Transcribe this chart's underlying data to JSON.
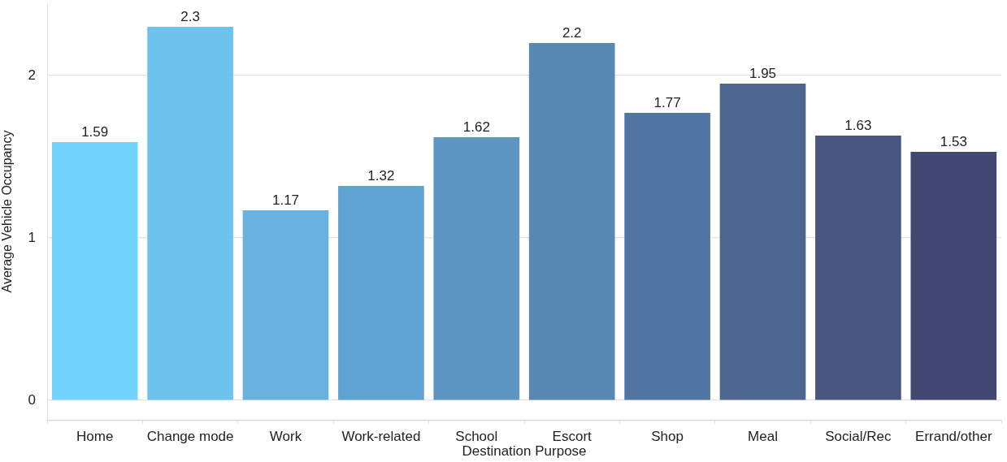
{
  "chart_data": {
    "type": "bar",
    "xlabel": "Destination Purpose",
    "ylabel": "Average Vehicle Occupancy",
    "categories": [
      "Home",
      "Change mode",
      "Work",
      "Work-related",
      "School",
      "Escort",
      "Shop",
      "Meal",
      "Social/Rec",
      "Errand/other"
    ],
    "values": [
      1.59,
      2.3,
      1.17,
      1.32,
      1.62,
      2.2,
      1.77,
      1.95,
      1.63,
      1.53
    ],
    "colors": [
      "#72d3fe",
      "#6dc3ee",
      "#67b2de",
      "#60a3d0",
      "#5e96c3",
      "#5888b3",
      "#5276a3",
      "#4c6690",
      "#47577f",
      "#424872"
    ],
    "ylim": [
      -0.125,
      2.45
    ],
    "yticks": [
      0,
      1,
      2
    ],
    "grid": "y",
    "data_labels": true
  }
}
